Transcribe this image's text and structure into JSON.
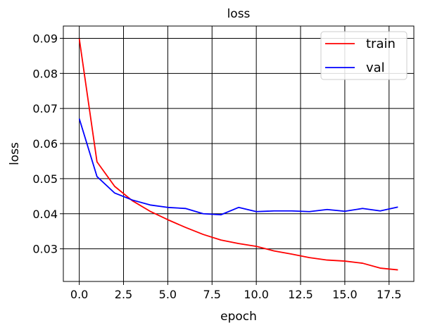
{
  "chart_data": {
    "type": "line",
    "title": "loss",
    "xlabel": "epoch",
    "ylabel": "loss",
    "xlim": [
      -0.9,
      18.9
    ],
    "ylim": [
      0.0207,
      0.0935
    ],
    "xticks": [
      0,
      2.5,
      5,
      7.5,
      10,
      12.5,
      15,
      17.5
    ],
    "xtick_labels": [
      "0.0",
      "2.5",
      "5.0",
      "7.5",
      "10.0",
      "12.5",
      "15.0",
      "17.5"
    ],
    "yticks": [
      0.03,
      0.04,
      0.05,
      0.06,
      0.07,
      0.08,
      0.09
    ],
    "ytick_labels": [
      "0.03",
      "0.04",
      "0.05",
      "0.06",
      "0.07",
      "0.08",
      "0.09"
    ],
    "grid": true,
    "legend": "top-right",
    "x": [
      0,
      1,
      2,
      3,
      4,
      5,
      6,
      7,
      8,
      9,
      10,
      11,
      12,
      13,
      14,
      15,
      16,
      17,
      18
    ],
    "series": [
      {
        "name": "train",
        "color": "#ff0000",
        "values": [
          0.0899,
          0.0548,
          0.0478,
          0.0437,
          0.0407,
          0.0383,
          0.0361,
          0.0341,
          0.0325,
          0.0315,
          0.0307,
          0.0294,
          0.0285,
          0.0275,
          0.0268,
          0.0265,
          0.0259,
          0.0245,
          0.024
        ]
      },
      {
        "name": "val",
        "color": "#0000ff",
        "values": [
          0.0671,
          0.0506,
          0.0459,
          0.0439,
          0.0425,
          0.0418,
          0.0415,
          0.04,
          0.0397,
          0.0418,
          0.0406,
          0.0408,
          0.0408,
          0.0406,
          0.0412,
          0.0407,
          0.0415,
          0.0408,
          0.0419
        ]
      }
    ]
  }
}
